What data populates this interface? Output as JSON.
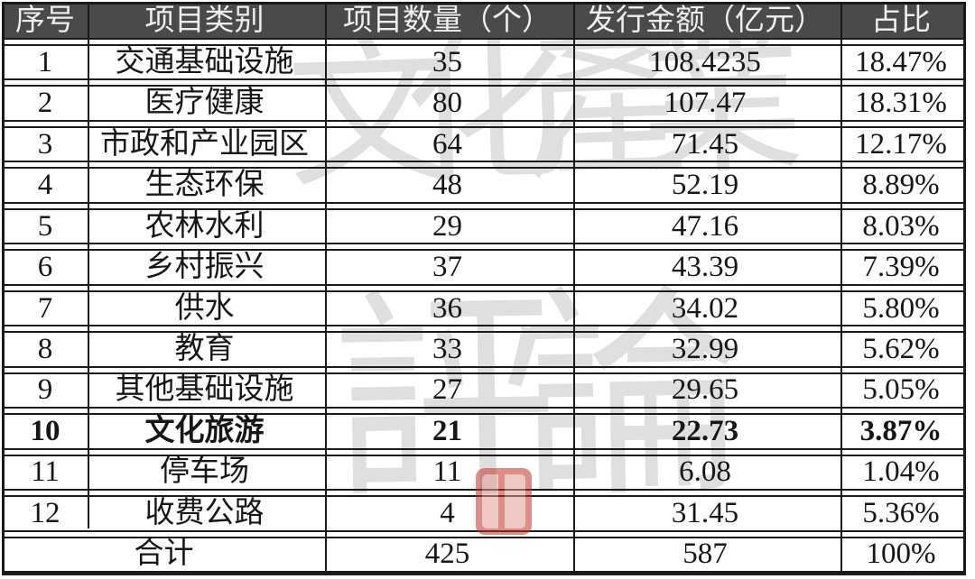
{
  "colors": {
    "header_bg": "#4a4a4a",
    "header_text": "#efefef",
    "border": "#1a1a1a",
    "text": "#161616",
    "seal": "#bf3528"
  },
  "watermark": {
    "top_text": "文化產業",
    "bottom_text": "評論"
  },
  "chart_data": {
    "type": "table",
    "columns": [
      "序号",
      "项目类别",
      "项目数量（个）",
      "发行金额（亿元）",
      "占比"
    ],
    "rows": [
      [
        "1",
        "交通基础设施",
        "35",
        "108.4235",
        "18.47%"
      ],
      [
        "2",
        "医疗健康",
        "80",
        "107.47",
        "18.31%"
      ],
      [
        "3",
        "市政和产业园区",
        "64",
        "71.45",
        "12.17%"
      ],
      [
        "4",
        "生态环保",
        "48",
        "52.19",
        "8.89%"
      ],
      [
        "5",
        "农林水利",
        "29",
        "47.16",
        "8.03%"
      ],
      [
        "6",
        "乡村振兴",
        "37",
        "43.39",
        "7.39%"
      ],
      [
        "7",
        "供水",
        "36",
        "34.02",
        "5.80%"
      ],
      [
        "8",
        "教育",
        "33",
        "32.99",
        "5.62%"
      ],
      [
        "9",
        "其他基础设施",
        "27",
        "29.65",
        "5.05%"
      ],
      [
        "10",
        "文化旅游",
        "21",
        "22.73",
        "3.87%"
      ],
      [
        "11",
        "停车场",
        "11",
        "6.08",
        "1.04%"
      ],
      [
        "12",
        "收费公路",
        "4",
        "31.45",
        "5.36%"
      ]
    ],
    "emphasized_row": "10",
    "total_row": [
      "合计",
      "425",
      "587",
      "100%"
    ],
    "legend_position": "none",
    "grid": true
  }
}
